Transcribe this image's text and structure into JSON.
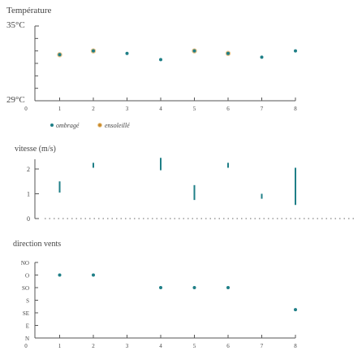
{
  "colors": {
    "ombrage": "#1f7f87",
    "ensoleille": "#c98a2a",
    "ensoleille_ring": "#e8c48a"
  },
  "chart_data": [
    {
      "type": "scatter",
      "title": "Température",
      "ymax_label": "35°C",
      "ymin_label": "29°C",
      "ylim": [
        29,
        35
      ],
      "x_ticks": [
        0,
        1,
        2,
        3,
        4,
        5,
        6,
        7,
        8
      ],
      "legend": [
        {
          "label": "ombragé",
          "key": "ombrage"
        },
        {
          "label": "ensoleillé",
          "key": "ensoleille"
        }
      ],
      "series": [
        {
          "name": "ombragé",
          "points": [
            [
              1,
              32.7
            ],
            [
              2,
              33.0
            ],
            [
              3,
              32.8
            ],
            [
              4,
              32.3
            ],
            [
              5,
              33.0
            ],
            [
              6,
              32.8
            ],
            [
              7,
              32.5
            ],
            [
              8,
              33.0
            ]
          ]
        },
        {
          "name": "ensoleillé",
          "points": [
            [
              1,
              32.7
            ],
            [
              2,
              33.0
            ],
            [
              5,
              33.0
            ],
            [
              6,
              32.8
            ]
          ]
        }
      ]
    },
    {
      "type": "bar",
      "title": "vitesse (m/s)",
      "y_ticks": [
        "0",
        "1",
        "2"
      ],
      "ylim": [
        0,
        2.3
      ],
      "ranges": [
        {
          "x": 1,
          "low": 1.05,
          "high": 1.5
        },
        {
          "x": 2,
          "low": 2.05,
          "high": 2.25
        },
        {
          "x": 4,
          "low": 1.95,
          "high": 2.45
        },
        {
          "x": 5,
          "low": 0.75,
          "high": 1.35
        },
        {
          "x": 6,
          "low": 2.05,
          "high": 2.25
        },
        {
          "x": 7,
          "low": 0.8,
          "high": 1.0
        },
        {
          "x": 8,
          "low": 0.55,
          "high": 2.05
        }
      ]
    },
    {
      "type": "scatter",
      "title": "direction vents",
      "categories": [
        "N",
        "E",
        "SE",
        "S",
        "SO",
        "O",
        "NO"
      ],
      "x_ticks": [
        0,
        1,
        2,
        3,
        4,
        5,
        6,
        7,
        8
      ],
      "points": [
        [
          1,
          "O"
        ],
        [
          2,
          "O"
        ],
        [
          4,
          "SO"
        ],
        [
          5,
          "SO"
        ],
        [
          6,
          "SO"
        ],
        [
          8,
          "SE"
        ]
      ],
      "point_offsets": [
        0,
        0,
        0,
        0,
        0,
        0.25
      ]
    }
  ]
}
